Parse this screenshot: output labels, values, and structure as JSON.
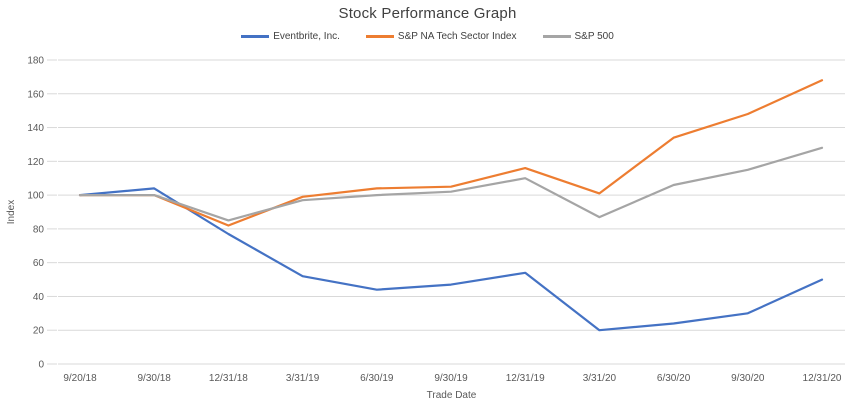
{
  "chart_data": {
    "type": "line",
    "title": "Stock Performance Graph",
    "xlabel": "Trade Date",
    "ylabel": "Index",
    "ylim": [
      0,
      180
    ],
    "ytick_step": 20,
    "grid": "horizontal-only",
    "legend_position": "top-center",
    "categories": [
      "9/20/18",
      "9/30/18",
      "12/31/18",
      "3/31/19",
      "6/30/19",
      "9/30/19",
      "12/31/19",
      "3/31/20",
      "6/30/20",
      "9/30/20",
      "12/31/20"
    ],
    "series": [
      {
        "name": "Eventbrite, Inc.",
        "color": "#4472C4",
        "values": [
          100,
          104,
          77,
          52,
          44,
          47,
          54,
          20,
          24,
          30,
          50
        ]
      },
      {
        "name": "S&P NA Tech Sector Index",
        "color": "#ED7D31",
        "values": [
          100,
          100,
          82,
          99,
          104,
          105,
          116,
          101,
          134,
          148,
          168
        ]
      },
      {
        "name": "S&P 500",
        "color": "#A5A5A5",
        "values": [
          100,
          100,
          85,
          97,
          100,
          102,
          110,
          87,
          106,
          115,
          128
        ]
      }
    ]
  },
  "colors": {
    "gridline": "#D9D9D9",
    "tick_text": "#595959",
    "title_text": "#404040"
  }
}
